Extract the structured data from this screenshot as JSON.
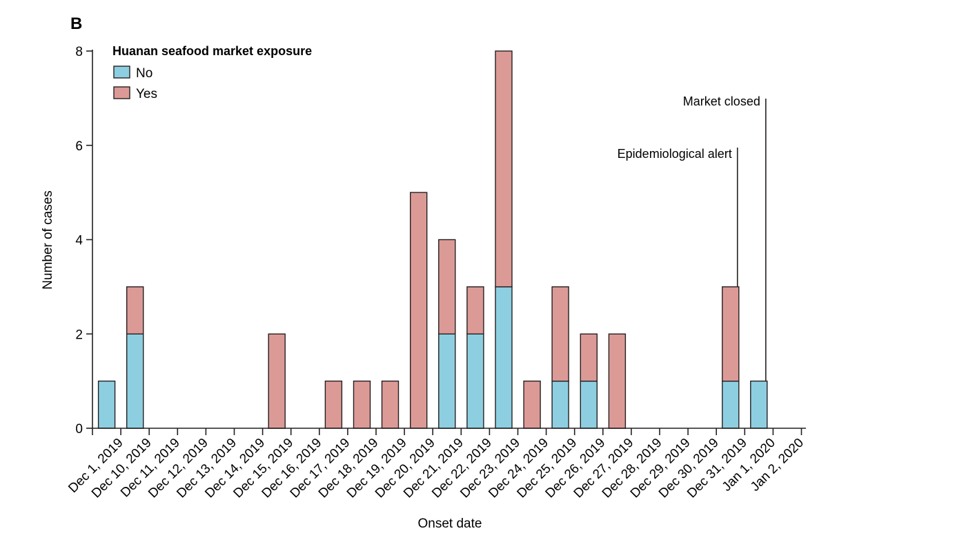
{
  "panel_label": "B",
  "chart_data": {
    "type": "bar",
    "stacked": true,
    "categories": [
      "Dec 1, 2019",
      "Dec 10, 2019",
      "Dec 11, 2019",
      "Dec 12, 2019",
      "Dec 13, 2019",
      "Dec 14, 2019",
      "Dec 15, 2019",
      "Dec 16, 2019",
      "Dec 17, 2019",
      "Dec 18, 2019",
      "Dec 19, 2019",
      "Dec 20, 2019",
      "Dec 21, 2019",
      "Dec 22, 2019",
      "Dec 23, 2019",
      "Dec 24, 2019",
      "Dec 25, 2019",
      "Dec 26, 2019",
      "Dec 27, 2019",
      "Dec 28, 2019",
      "Dec 29, 2019",
      "Dec 30, 2019",
      "Dec 31, 2019",
      "Jan 1, 2020",
      "Jan 2, 2020"
    ],
    "series": [
      {
        "name": "No",
        "color": "#8dcfe1",
        "values": [
          1,
          2,
          0,
          0,
          0,
          0,
          0,
          0,
          0,
          0,
          0,
          0,
          2,
          2,
          3,
          0,
          1,
          1,
          0,
          0,
          0,
          0,
          1,
          1,
          0
        ]
      },
      {
        "name": "Yes",
        "color": "#dc9a96",
        "values": [
          0,
          1,
          0,
          0,
          0,
          0,
          2,
          0,
          1,
          1,
          1,
          5,
          2,
          1,
          5,
          1,
          2,
          1,
          2,
          0,
          0,
          0,
          2,
          0,
          0
        ]
      }
    ],
    "legend_title": "Huanan seafood market exposure",
    "legend_position": "top-left",
    "xlabel": "Onset date",
    "ylabel": "Number of cases",
    "ylim": [
      0,
      8
    ],
    "yticks": [
      0,
      2,
      4,
      6,
      8
    ],
    "grid": false,
    "annotations": [
      {
        "text": "Epidemiological alert",
        "category": "Dec 31, 2019"
      },
      {
        "text": "Market closed",
        "category": "Jan 1, 2020"
      }
    ]
  }
}
